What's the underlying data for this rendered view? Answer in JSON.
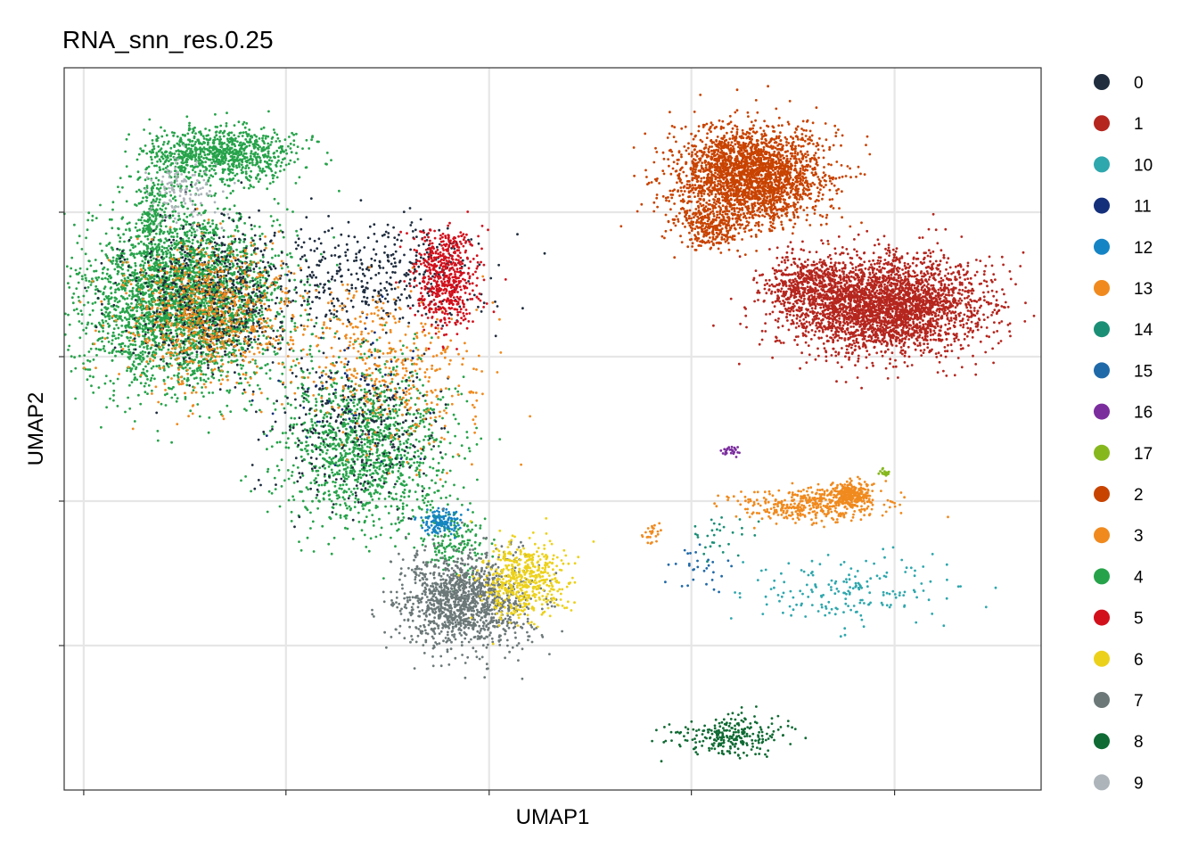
{
  "chart_data": {
    "type": "scatter",
    "title": "RNA_snn_res.0.25",
    "xlabel": "UMAP1",
    "ylabel": "UMAP2",
    "xlim": [
      0,
      100
    ],
    "ylim": [
      0,
      100
    ],
    "x_grid": [
      2,
      22.7,
      43.5,
      64.2,
      85
    ],
    "y_grid": [
      20,
      40,
      60,
      80
    ],
    "grid": true,
    "tick_labels_shown": false,
    "legend_position": "right",
    "legend": [
      {
        "label": "0",
        "color": "#1f2d3f"
      },
      {
        "label": "1",
        "color": "#b5261e"
      },
      {
        "label": "10",
        "color": "#2ea7ad"
      },
      {
        "label": "11",
        "color": "#14307b"
      },
      {
        "label": "12",
        "color": "#1584c5"
      },
      {
        "label": "13",
        "color": "#f08a1e"
      },
      {
        "label": "14",
        "color": "#1b8f76"
      },
      {
        "label": "15",
        "color": "#1f69a8"
      },
      {
        "label": "16",
        "color": "#7b2d9e"
      },
      {
        "label": "17",
        "color": "#86b81e"
      },
      {
        "label": "2",
        "color": "#c84300"
      },
      {
        "label": "3",
        "color": "#f08a1e"
      },
      {
        "label": "4",
        "color": "#26a34a"
      },
      {
        "label": "5",
        "color": "#d2101c"
      },
      {
        "label": "6",
        "color": "#ecd11b"
      },
      {
        "label": "7",
        "color": "#6c7878"
      },
      {
        "label": "8",
        "color": "#0f6a33"
      },
      {
        "label": "9",
        "color": "#adb5bb"
      }
    ],
    "clusters": [
      {
        "label": "4",
        "regions": [
          [
            12,
            68,
            9,
            11,
            3200
          ],
          [
            31,
            48,
            8,
            10,
            1300
          ],
          [
            40,
            34,
            3,
            4,
            150
          ],
          [
            16,
            88,
            7,
            3.5,
            900
          ],
          [
            9,
            80,
            1.5,
            5,
            150
          ]
        ]
      },
      {
        "label": "0",
        "regions": [
          [
            15,
            68,
            8,
            9,
            700
          ],
          [
            30,
            50,
            8,
            9,
            300
          ],
          [
            32,
            72,
            10,
            6,
            400
          ]
        ]
      },
      {
        "label": "3",
        "regions": [
          [
            15,
            66,
            8,
            9,
            600
          ],
          [
            34,
            57,
            8,
            10,
            350
          ],
          [
            76,
            39.5,
            7,
            2,
            400
          ],
          [
            80.5,
            41,
            2,
            1.5,
            250
          ],
          [
            60,
            35.5,
            1,
            1.5,
            25
          ]
        ]
      },
      {
        "label": "13",
        "regions": [
          [
            14,
            64,
            8,
            9,
            150
          ],
          [
            30,
            64,
            6,
            6,
            80
          ]
        ]
      },
      {
        "label": "5",
        "regions": [
          [
            39,
            70,
            3,
            6,
            450
          ],
          [
            38.5,
            75,
            3,
            3,
            120
          ]
        ]
      },
      {
        "label": "9",
        "regions": [
          [
            12,
            83,
            3,
            4,
            120
          ]
        ]
      },
      {
        "label": "12",
        "regions": [
          [
            38.5,
            37,
            2,
            1.5,
            120
          ]
        ]
      },
      {
        "label": "7",
        "regions": [
          [
            41,
            26,
            6,
            6,
            1300
          ]
        ]
      },
      {
        "label": "6",
        "regions": [
          [
            47,
            29,
            4,
            5,
            500
          ]
        ]
      },
      {
        "label": "2",
        "regions": [
          [
            70,
            85,
            7,
            6,
            2500
          ],
          [
            66,
            78,
            3,
            3,
            250
          ]
        ]
      },
      {
        "label": "1",
        "regions": [
          [
            84,
            67,
            9,
            6,
            3000
          ],
          [
            76,
            70,
            4,
            4,
            400
          ]
        ]
      },
      {
        "label": "10",
        "regions": [
          [
            80,
            27.5,
            9,
            4,
            180
          ]
        ]
      },
      {
        "label": "8",
        "regions": [
          [
            68.5,
            7.5,
            5,
            2.5,
            250
          ]
        ]
      },
      {
        "label": "14",
        "regions": [
          [
            67,
            35,
            3,
            3,
            30
          ]
        ]
      },
      {
        "label": "15",
        "regions": [
          [
            65,
            31,
            3,
            4,
            30
          ]
        ]
      },
      {
        "label": "16",
        "regions": [
          [
            68.5,
            47,
            1,
            0.6,
            25
          ]
        ]
      },
      {
        "label": "17",
        "regions": [
          [
            84,
            44,
            0.5,
            0.6,
            20
          ]
        ]
      },
      {
        "label": "11",
        "regions": [
          [
            30,
            55,
            8,
            10,
            60
          ]
        ]
      }
    ]
  }
}
